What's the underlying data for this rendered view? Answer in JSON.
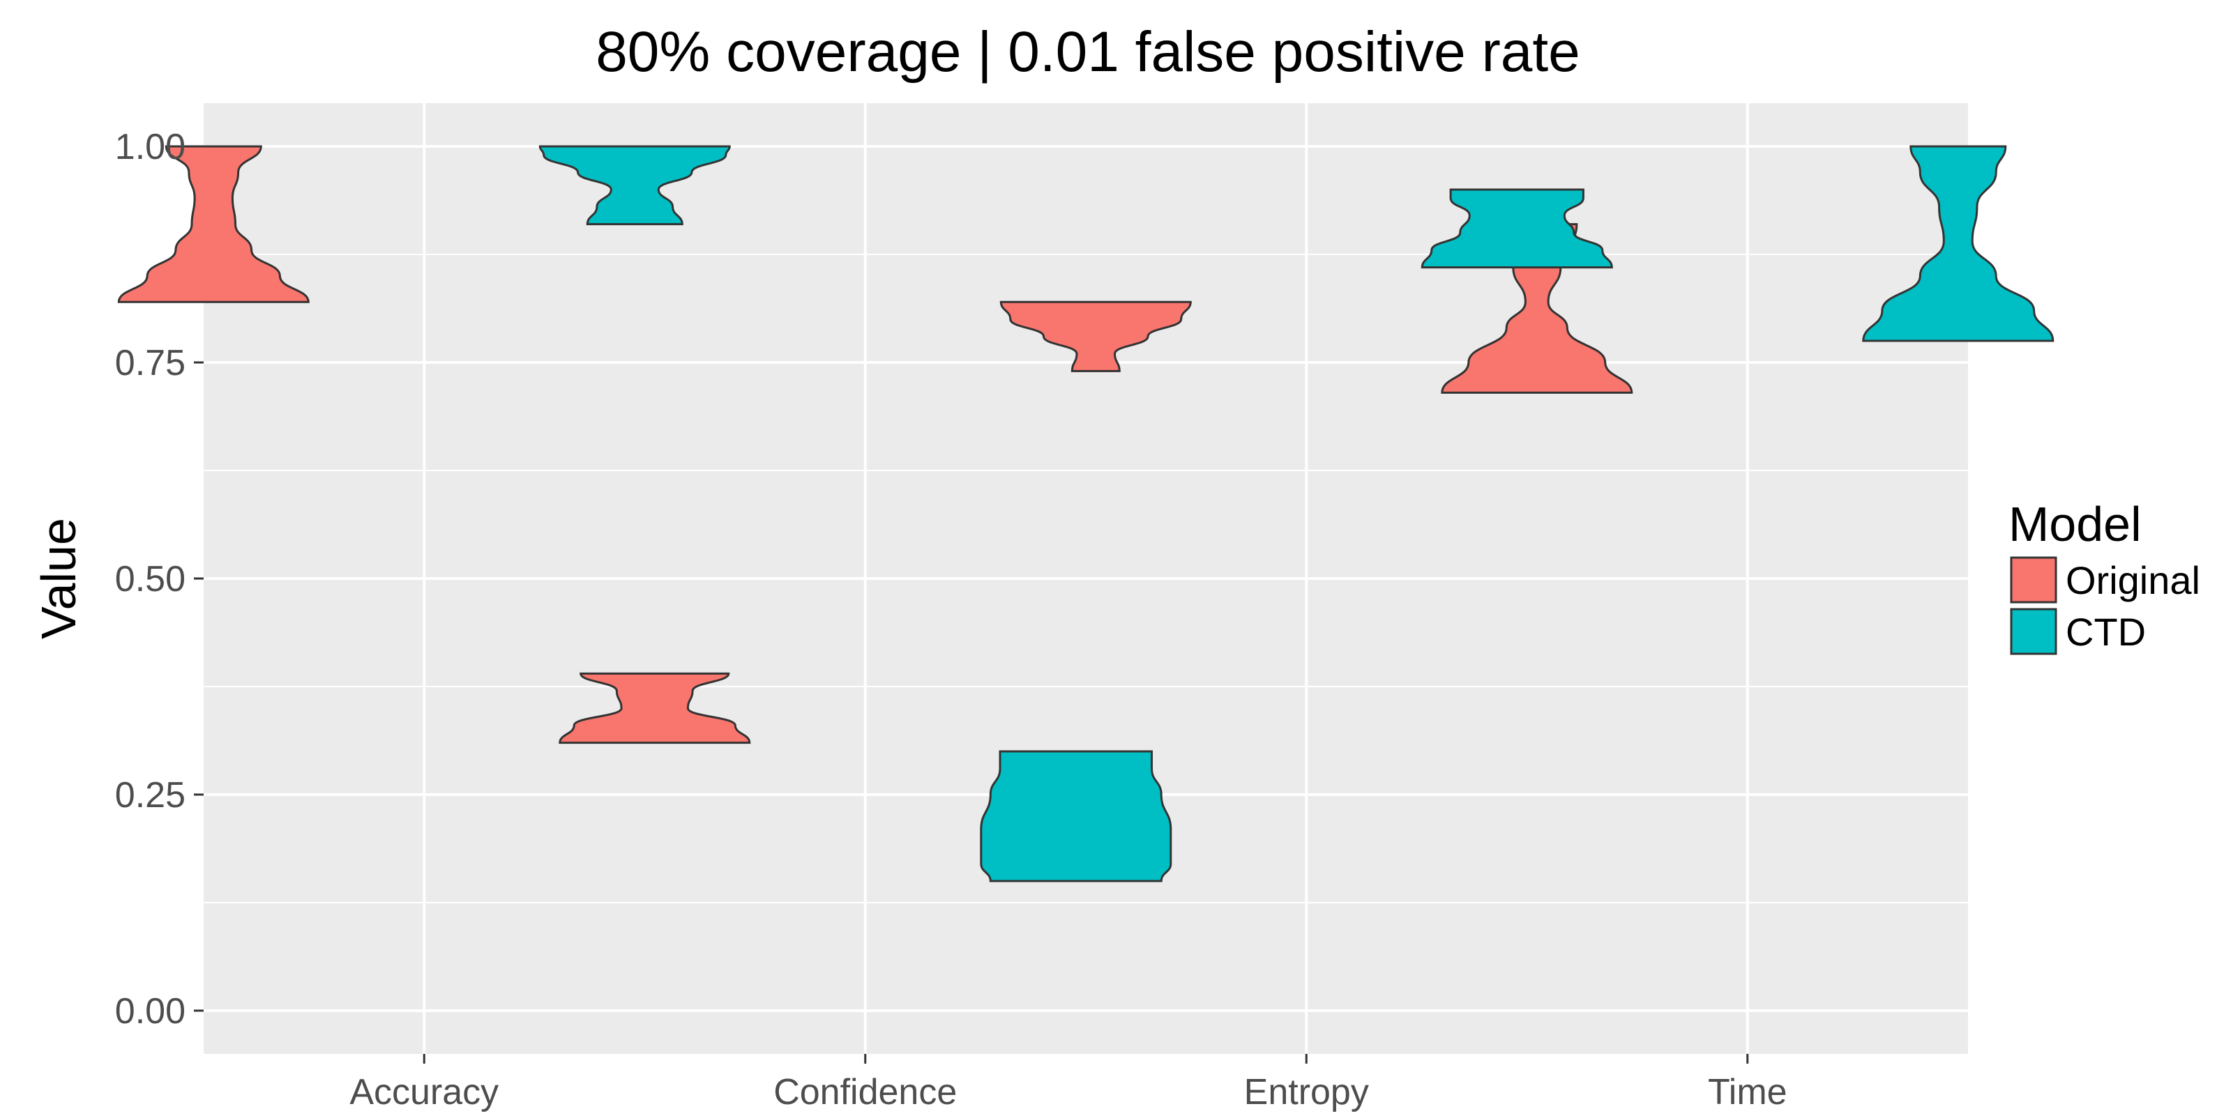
{
  "chart_data": {
    "type": "violin",
    "title": "80% coverage | 0.01 false positive rate",
    "xlabel": "",
    "ylabel": "Value",
    "categories": [
      "Accuracy",
      "Confidence",
      "Entropy",
      "Time"
    ],
    "yticks": [
      "0.00",
      "0.25",
      "0.50",
      "0.75",
      "1.00"
    ],
    "ylim": [
      -0.05,
      1.05
    ],
    "grid": true,
    "legend": {
      "title": "Model",
      "position": "right"
    },
    "series": [
      {
        "name": "Original",
        "color": "#F8766D",
        "violins": [
          {
            "category": "Accuracy",
            "min": 0.82,
            "max": 1.0,
            "profile": [
              [
                0.82,
                1.0
              ],
              [
                0.85,
                0.7
              ],
              [
                0.88,
                0.4
              ],
              [
                0.91,
                0.23
              ],
              [
                0.94,
                0.2
              ],
              [
                0.97,
                0.26
              ],
              [
                1.0,
                0.5
              ]
            ]
          },
          {
            "category": "Confidence",
            "min": 0.31,
            "max": 0.39,
            "profile": [
              [
                0.31,
                1.0
              ],
              [
                0.33,
                0.85
              ],
              [
                0.35,
                0.35
              ],
              [
                0.37,
                0.4
              ],
              [
                0.39,
                0.78
              ]
            ]
          },
          {
            "category": "Entropy",
            "min": 0.74,
            "max": 0.82,
            "profile": [
              [
                0.74,
                0.25
              ],
              [
                0.76,
                0.2
              ],
              [
                0.78,
                0.55
              ],
              [
                0.8,
                0.9
              ],
              [
                0.82,
                1.0
              ]
            ]
          },
          {
            "category": "Time",
            "min": 0.715,
            "max": 0.91,
            "profile": [
              [
                0.715,
                1.0
              ],
              [
                0.75,
                0.72
              ],
              [
                0.79,
                0.32
              ],
              [
                0.82,
                0.12
              ],
              [
                0.86,
                0.25
              ],
              [
                0.91,
                0.42
              ]
            ]
          }
        ]
      },
      {
        "name": "CTD",
        "color": "#00BFC4",
        "violins": [
          {
            "category": "Accuracy",
            "min": 0.91,
            "max": 1.0,
            "profile": [
              [
                0.91,
                0.5
              ],
              [
                0.93,
                0.4
              ],
              [
                0.95,
                0.25
              ],
              [
                0.97,
                0.6
              ],
              [
                0.99,
                0.96
              ],
              [
                1.0,
                1.0
              ]
            ]
          },
          {
            "category": "Confidence",
            "min": 0.15,
            "max": 0.3,
            "profile": [
              [
                0.15,
                0.9
              ],
              [
                0.17,
                1.0
              ],
              [
                0.21,
                1.0
              ],
              [
                0.25,
                0.9
              ],
              [
                0.28,
                0.8
              ],
              [
                0.3,
                0.8
              ]
            ]
          },
          {
            "category": "Entropy",
            "min": 0.86,
            "max": 0.95,
            "profile": [
              [
                0.86,
                1.0
              ],
              [
                0.88,
                0.9
              ],
              [
                0.9,
                0.6
              ],
              [
                0.92,
                0.5
              ],
              [
                0.94,
                0.7
              ],
              [
                0.95,
                0.7
              ]
            ]
          },
          {
            "category": "Time",
            "min": 0.775,
            "max": 1.0,
            "profile": [
              [
                0.775,
                1.0
              ],
              [
                0.81,
                0.8
              ],
              [
                0.85,
                0.4
              ],
              [
                0.89,
                0.15
              ],
              [
                0.93,
                0.2
              ],
              [
                0.97,
                0.4
              ],
              [
                1.0,
                0.5
              ]
            ]
          }
        ]
      }
    ]
  }
}
